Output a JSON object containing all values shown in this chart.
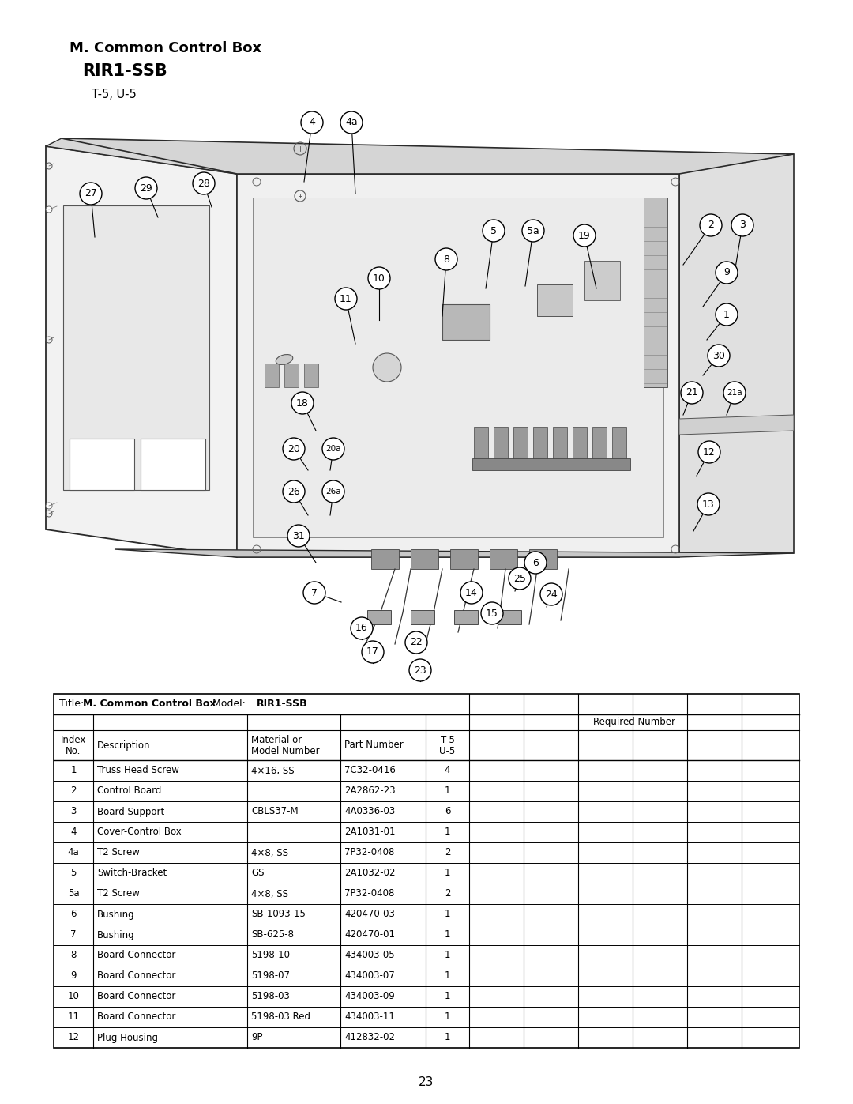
{
  "page_title_line1": "M. Common Control Box",
  "page_title_line2": "RIR1-SSB",
  "page_title_line3": "T-5, U-5",
  "page_number": "23",
  "table_title_label": "Title:",
  "table_title_bold": "M. Common Control Box",
  "table_model_label": "Model:",
  "table_model_bold": "RIR1-SSB",
  "required_number_header": "Required Number",
  "rows": [
    [
      "1",
      "Truss Head Screw",
      "4×16, SS",
      "7C32-0416",
      "4"
    ],
    [
      "2",
      "Control Board",
      "",
      "2A2862-23",
      "1"
    ],
    [
      "3",
      "Board Support",
      "CBLS37-M",
      "4A0336-03",
      "6"
    ],
    [
      "4",
      "Cover-Control Box",
      "",
      "2A1031-01",
      "1"
    ],
    [
      "4a",
      "T2 Screw",
      "4×8, SS",
      "7P32-0408",
      "2"
    ],
    [
      "5",
      "Switch-Bracket",
      "GS",
      "2A1032-02",
      "1"
    ],
    [
      "5a",
      "T2 Screw",
      "4×8, SS",
      "7P32-0408",
      "2"
    ],
    [
      "6",
      "Bushing",
      "SB-1093-15",
      "420470-03",
      "1"
    ],
    [
      "7",
      "Bushing",
      "SB-625-8",
      "420470-01",
      "1"
    ],
    [
      "8",
      "Board Connector",
      "5198-10",
      "434003-05",
      "1"
    ],
    [
      "9",
      "Board Connector",
      "5198-07",
      "434003-07",
      "1"
    ],
    [
      "10",
      "Board Connector",
      "5198-03",
      "434003-09",
      "1"
    ],
    [
      "11",
      "Board Connector",
      "5198-03 Red",
      "434003-11",
      "1"
    ],
    [
      "12",
      "Plug Housing",
      "9P",
      "412832-02",
      "1"
    ]
  ],
  "bg_color": "#ffffff",
  "text_color": "#000000"
}
